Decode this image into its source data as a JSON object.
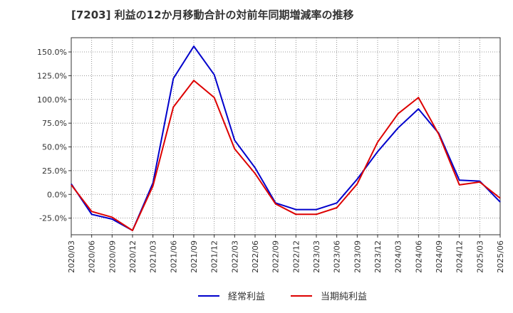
{
  "chart_data": {
    "type": "line",
    "title": "[7203]  利益の12か月移動合計の対前年同期増減率の推移",
    "xlabel": "",
    "ylabel": "",
    "ylim": [
      -42.5,
      165
    ],
    "yticks": [
      -25,
      0,
      25,
      50,
      75,
      100,
      125,
      150
    ],
    "ytick_labels": [
      "-25.0%",
      "0.0%",
      "25.0%",
      "50.0%",
      "75.0%",
      "100.0%",
      "125.0%",
      "150.0%"
    ],
    "categories": [
      "2020/03",
      "2020/06",
      "2020/09",
      "2020/12",
      "2021/03",
      "2021/06",
      "2021/09",
      "2021/12",
      "2022/03",
      "2022/06",
      "2022/09",
      "2022/12",
      "2023/03",
      "2023/06",
      "2023/09",
      "2023/12",
      "2024/03",
      "2024/06",
      "2024/09",
      "2024/12",
      "2025/03",
      "2025/06"
    ],
    "grid": true,
    "legend_position": "bottom-center",
    "series": [
      {
        "name": "経常利益",
        "color": "#0000cc",
        "values": [
          11,
          -21,
          -26,
          -38,
          12,
          122,
          156,
          126,
          57,
          28,
          -9,
          -16,
          -16,
          -9,
          16,
          45,
          70,
          90,
          64,
          15,
          14,
          -8
        ]
      },
      {
        "name": "当期純利益",
        "color": "#dd0000",
        "values": [
          10,
          -18,
          -24,
          -38,
          9,
          92,
          120,
          102,
          48,
          22,
          -10,
          -21,
          -21,
          -14,
          11,
          55,
          85,
          102,
          63,
          10,
          13,
          -4
        ]
      }
    ]
  }
}
